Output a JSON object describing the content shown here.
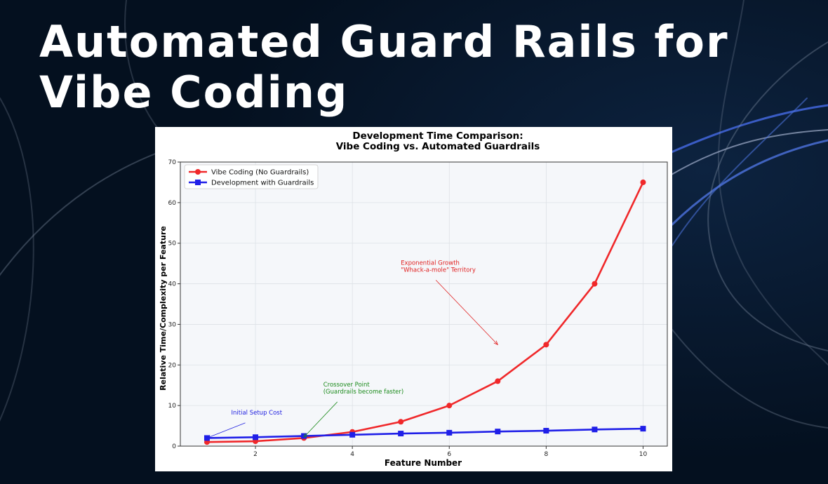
{
  "slide": {
    "title": "Automated Guard Rails for Vibe Coding",
    "background_color": "#04101f",
    "accent_color": "#4a6fd6"
  },
  "chart_data": {
    "type": "line",
    "title": "Development Time Comparison:\nVibe Coding vs. Automated Guardrails",
    "xlabel": "Feature Number",
    "ylabel": "Relative Time/Complexity per Feature",
    "xlim": [
      0.45,
      10.5
    ],
    "ylim": [
      0,
      70
    ],
    "xticks": [
      2,
      4,
      6,
      8,
      10
    ],
    "yticks": [
      0,
      10,
      20,
      30,
      40,
      50,
      60,
      70
    ],
    "grid": true,
    "legend_position": "top-left",
    "x": [
      1,
      2,
      3,
      4,
      5,
      6,
      7,
      8,
      9,
      10
    ],
    "series": [
      {
        "name": "Vibe Coding (No Guardrails)",
        "color": "#f0282a",
        "marker": "circle",
        "values": [
          1.0,
          1.2,
          2.0,
          3.5,
          6.0,
          10.0,
          16.0,
          25.0,
          40.0,
          65.0
        ]
      },
      {
        "name": "Development with Guardrails",
        "color": "#1f1fe8",
        "marker": "square",
        "values": [
          2.0,
          2.2,
          2.5,
          2.8,
          3.1,
          3.3,
          3.6,
          3.8,
          4.1,
          4.3
        ]
      }
    ],
    "annotations": [
      {
        "lines": [
          "Initial Setup Cost"
        ],
        "color": "#2020e0",
        "text_at": [
          1.5,
          7.8
        ],
        "point": [
          1.0,
          2.0
        ]
      },
      {
        "lines": [
          "Crossover Point",
          "(Guardrails become faster)"
        ],
        "color": "#1a8a1a",
        "text_at": [
          3.4,
          14.7
        ],
        "point": [
          3.0,
          2.2
        ]
      },
      {
        "lines": [
          "Exponential Growth",
          "\"Whack-a-mole\" Territory"
        ],
        "color": "#e02020",
        "text_at": [
          5.0,
          44.7
        ],
        "point": [
          7.0,
          25.0
        ]
      }
    ]
  }
}
